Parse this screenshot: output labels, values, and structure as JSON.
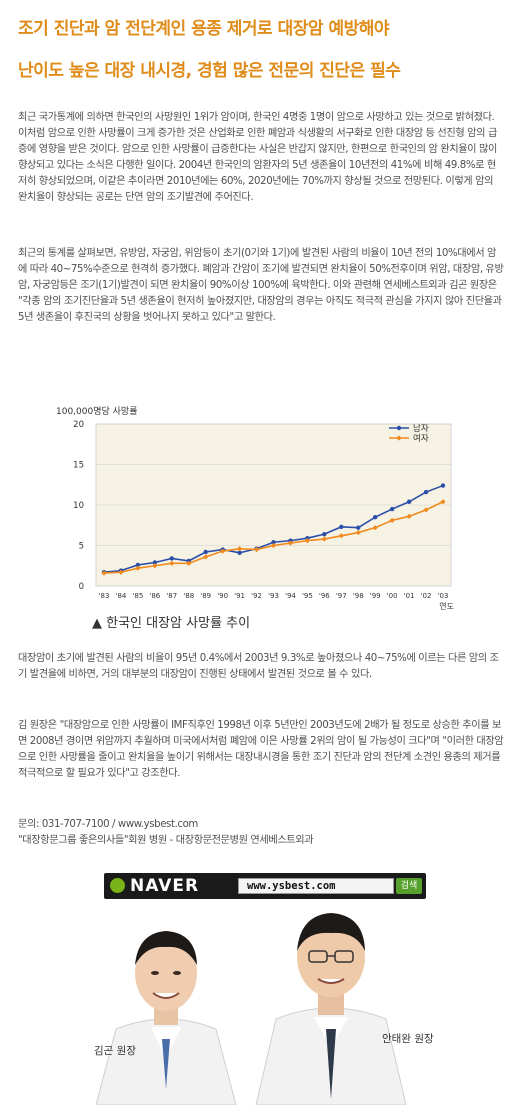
{
  "headline": {
    "line1": "조기 진단과 암 전단계인 용종 제거로 대장암 예방해야",
    "line2": "난이도 높은 대장 내시경, 경험 많은 전문의 진단은 필수"
  },
  "paragraphs": [
    "최근 국가통계에 의하면 한국인의 사망원인 1위가 암이며, 한국인 4명중 1명이 암으로 사망하고 있는 것으로 밝혀졌다. 이처럼 암으로 인한 사망률이 크게 증가한 것은 산업화로 인한 폐암과 식생활의 서구화로 인한 대장암 등 선진형 암의 급증에 영향을 받은 것이다. 암으로 인한 사망률이 급증한다는 사실은 반갑지 않지만, 한편으로 한국인의 암 완치율이 많이 향상되고 있다는 소식은 다행한 일이다. 2004년 한국인의 암환자의 5년 생존율이 10년전의 41%에 비해 49.8%로 현저히 향상되었으며, 이같은 추이라면 2010년에는 60%, 2020년에는 70%까지 향상될 것으로 전망된다. 이렇게 암의 완치율이 향상되는 공로는 단연 암의 조기발견에 주어진다.",
    "최근의 통계를 살펴보면, 유방암, 자궁암, 위암등이 초기(0기와 1기)에 발견된 사람의 비율이 10년 전의 10%대에서 암에 따라 40~75%수준으로 현격히 증가했다. 폐암과 간암이 조기에 발견되면 완치율이 50%전후이며 위암, 대장암, 유방암, 자궁암등은 조기(1기)발견이 되면 완치율이 90%이상 100%에 육박한다. 이와 관련해 연세베스트외과 김곤 원장은 \"각종 암의 조기진단율과 5년 생존율이 현저히 높아졌지만, 대장암의 경우는 아직도 적극적 관심을 가지지 않아 진단율과 5년 생존율이 후진국의 상황을 벗어나지 못하고 있다\"고 말한다.",
    "대장암이 초기에 발견된 사람의 비율이 95년 0.4%에서 2003년 9.3%로 높아졌으나 40~75%에 이르는 다른 암의 조기 발견율에 비하면, 거의 대부분의 대장암이 진행된 상태에서 발견된 것으로 볼 수 있다.",
    "김 원장은 \"대장암으로 인한 사망률이 IMF직후인 1998년 이후 5년만인 2003년도에 2배가 될 정도로 상승한 추이를 보면 2008년 경이면 위암까지 추월하며 미국에서처럼 폐암에 이은 사망률 2위의 암이 될 가능성이 크다\"며 \"이러한 대장암으로 인한 사망률을 줄이고 완치율을 높이기 위해서는 대장내시경을 통한 조기 진단과 암의 전단계 소견인 용종의 제거를 적극적으로 할 필요가 있다\"고 강조한다."
  ],
  "contact": {
    "line1": "문의: 031-707-7100 / www.ysbest.com",
    "line2": "\"대장항문그룹 좋은의사들\"회원 병원 - 대장항문전문병원 연세베스트외과"
  },
  "chart_caption": "▲ 한국인 대장암 사망률 추이",
  "chart_data": {
    "type": "line",
    "ylabel": "100,000명당 사망률",
    "xlabel": "연도",
    "categories": [
      "'83",
      "'84",
      "'85",
      "'86",
      "'87",
      "'88",
      "'89",
      "'90",
      "'91",
      "'92",
      "'93",
      "'94",
      "'95",
      "'96",
      "'97",
      "'98",
      "'99",
      "'00",
      "'01",
      "'02",
      "'03"
    ],
    "ylim": [
      0,
      20
    ],
    "yticks": [
      0,
      5,
      10,
      15,
      20
    ],
    "legend_position": "top-right",
    "series": [
      {
        "name": "남자",
        "color": "#2b4fa8",
        "values": [
          1.7,
          1.9,
          2.6,
          2.9,
          3.4,
          3.1,
          4.2,
          4.5,
          4.1,
          4.6,
          5.4,
          5.6,
          5.9,
          6.4,
          7.3,
          7.2,
          8.5,
          9.5,
          10.4,
          11.6,
          12.4
        ]
      },
      {
        "name": "여자",
        "color": "#f08a1c",
        "values": [
          1.6,
          1.7,
          2.2,
          2.5,
          2.8,
          2.8,
          3.6,
          4.3,
          4.6,
          4.5,
          5.0,
          5.3,
          5.6,
          5.8,
          6.2,
          6.6,
          7.2,
          8.1,
          8.6,
          9.4,
          10.4
        ]
      }
    ]
  },
  "banner": {
    "logo": "NAVER",
    "search_text": "www.ysbest.com",
    "search_button": "검색"
  },
  "doctors": {
    "left_name": "김곤 원장",
    "right_name": "안태완 원장"
  }
}
